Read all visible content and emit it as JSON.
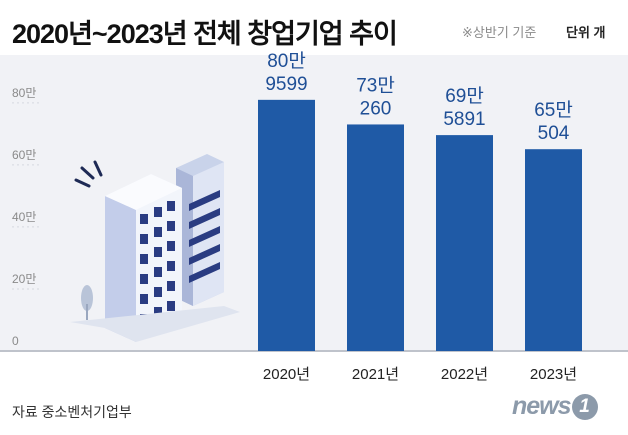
{
  "header": {
    "title": "2020년~2023년 전체 창업기업 추이",
    "basis_note": "※상반기 기준",
    "unit_note": "단위 개"
  },
  "chart_data": {
    "type": "bar",
    "title": "2020년~2023년 전체 창업기업 추이",
    "categories": [
      "2020년",
      "2021년",
      "2022년",
      "2023년"
    ],
    "values": [
      809599,
      730260,
      695891,
      650504
    ],
    "value_labels": [
      [
        "80만",
        "9599"
      ],
      [
        "73만",
        "260"
      ],
      [
        "69만",
        "5891"
      ],
      [
        "65만",
        "504"
      ]
    ],
    "y_ticks": [
      0,
      200000,
      400000,
      600000,
      800000
    ],
    "y_tick_labels": [
      "0",
      "20만",
      "40만",
      "60만",
      "80만"
    ],
    "ylim": [
      0,
      880000
    ],
    "ylabel": "",
    "xlabel": "",
    "unit": "개",
    "grid": true,
    "colors": {
      "bar": "#1f5aa6",
      "label": "#1f4f96",
      "axis_text": "#8a8a8a",
      "grid": "#d5d8df",
      "baseline": "#bfc3cb"
    }
  },
  "footer": {
    "source": "자료 중소벤처기업부",
    "logo_text": "news",
    "logo_mark": "1"
  }
}
